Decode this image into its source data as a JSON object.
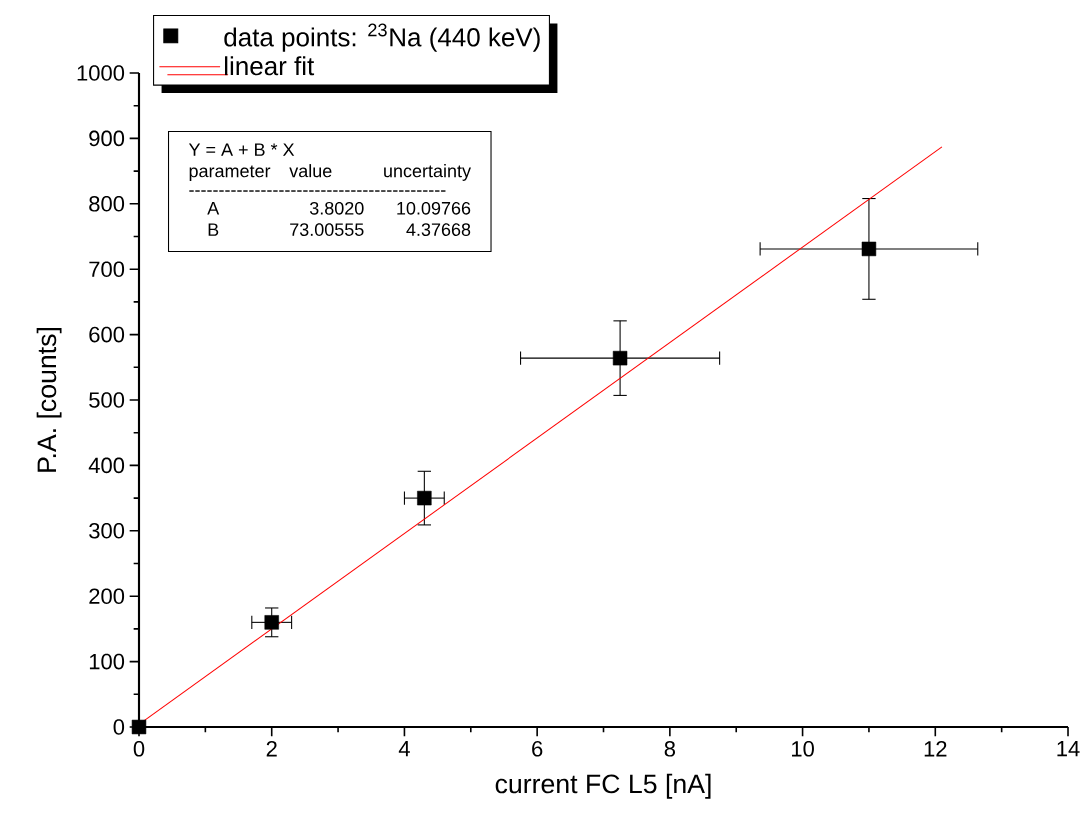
{
  "chart_data": {
    "type": "scatter",
    "xlabel": "current FC L5  [nA]",
    "ylabel": "P.A. [counts]",
    "series": [
      {
        "name": "data points: $^{23}$Na (440 keV)",
        "marker": "square",
        "color": "#000000",
        "x": [
          0,
          2,
          4.3,
          7.25,
          11
        ],
        "values": [
          0,
          160,
          350,
          564,
          731
        ],
        "errors": [
          null,
          22,
          41,
          57,
          77
        ],
        "xerrors": [
          null,
          0.3,
          0.3,
          1.5,
          1.64
        ]
      },
      {
        "name": "linear fit",
        "type": "line",
        "marker": "none",
        "color": "#ff0000",
        "x": [
          0,
          12.1
        ],
        "values": [
          4,
          887
        ]
      }
    ],
    "line_style": "solid",
    "legend": "top left",
    "grid": false,
    "xlim": [
      0,
      14
    ],
    "xticks": [
      0,
      2,
      4,
      6,
      8,
      10,
      12,
      14
    ],
    "ylim": [
      0,
      1000
    ],
    "yticks": [
      0,
      100,
      200,
      300,
      400,
      500,
      600,
      700,
      800,
      900,
      1000
    ],
    "annotations": [
      "Y = A + B * X",
      "parameter",
      "value",
      "uncertainty",
      "-------------------------------------------",
      "A",
      "3.8020",
      "10.09766",
      "B",
      "73.00555",
      "4.37668"
    ]
  }
}
